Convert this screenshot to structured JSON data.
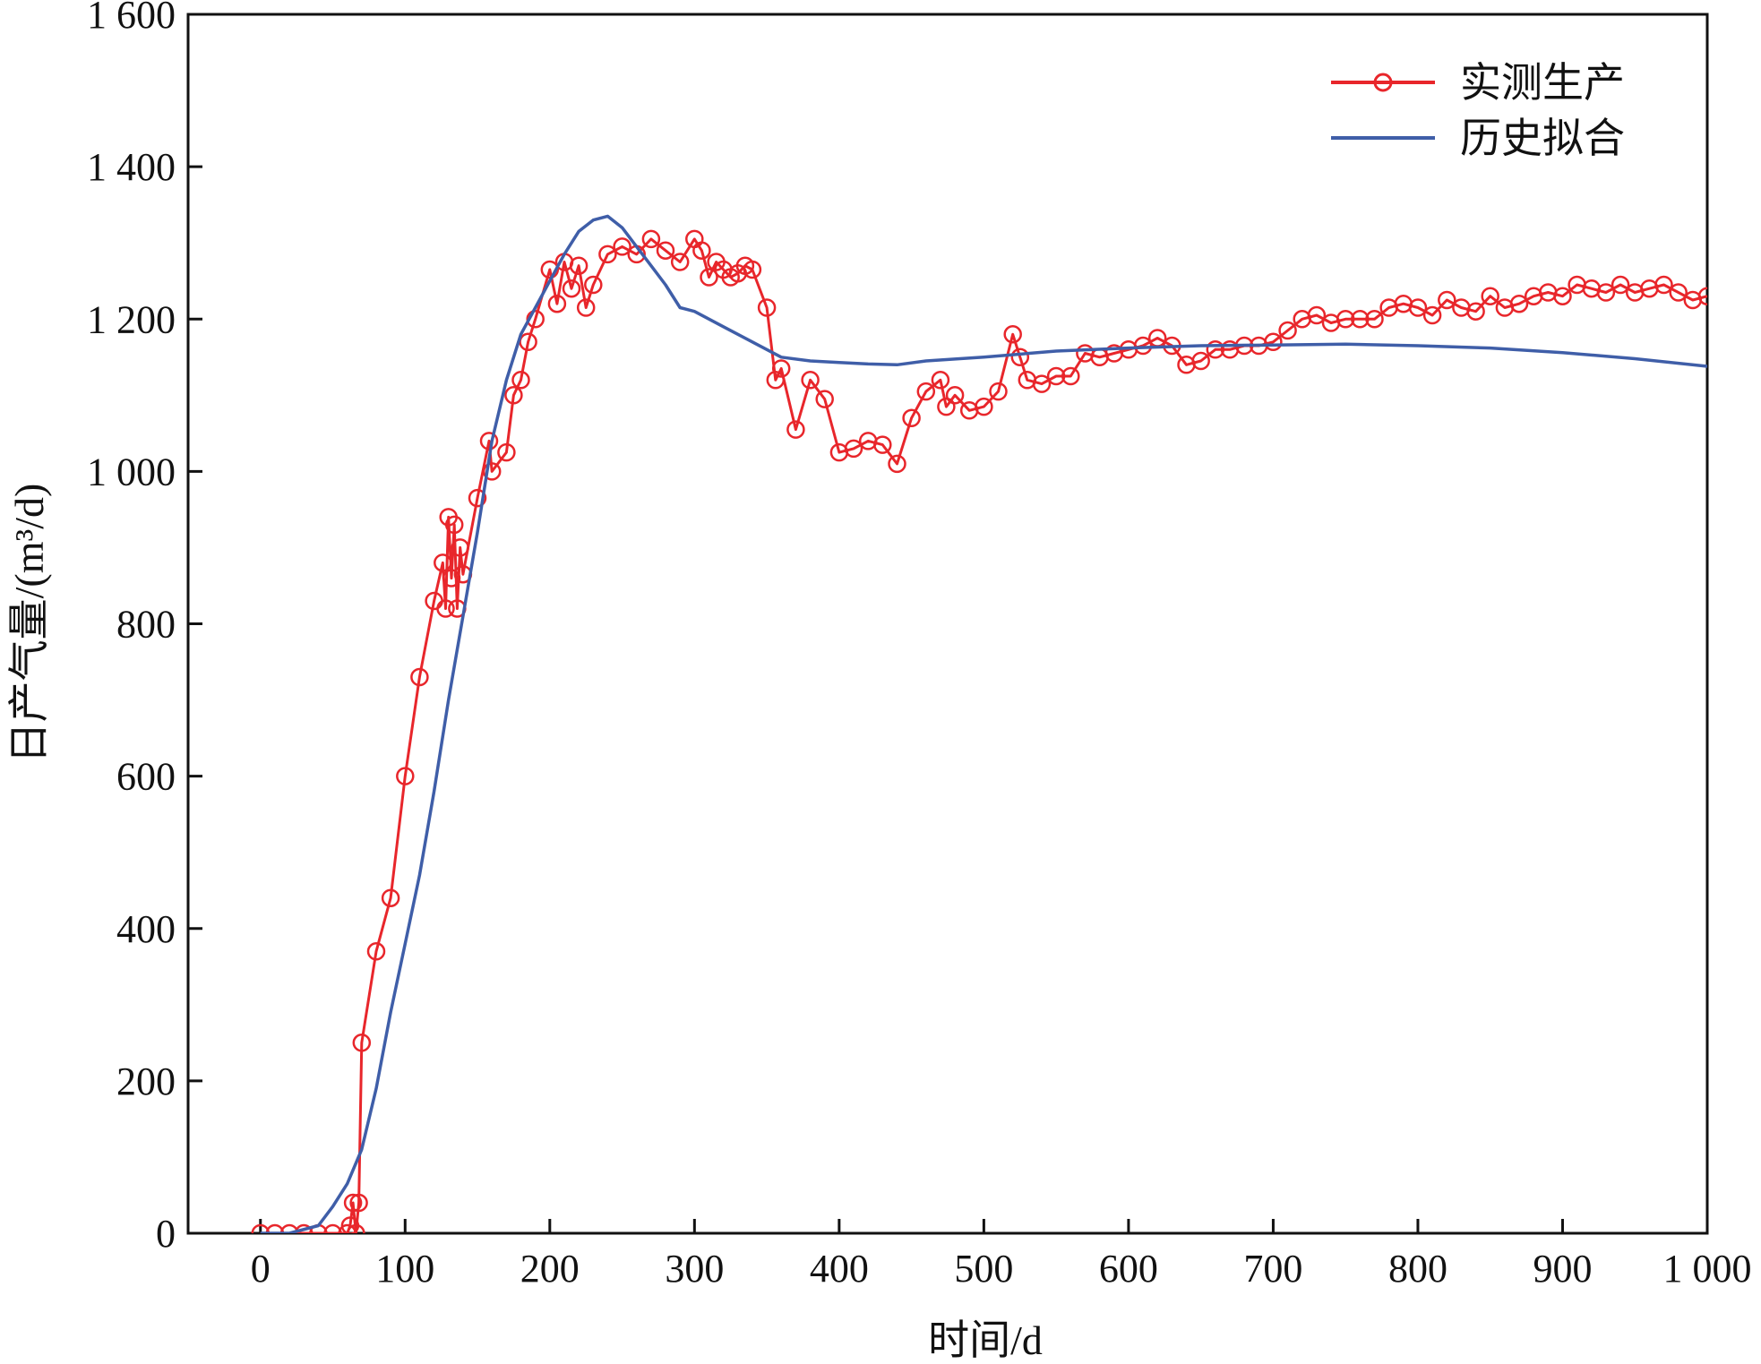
{
  "chart_data": {
    "type": "line",
    "xlabel": "时间/d",
    "ylabel": "日产气量/(m³/d)",
    "xlim": [
      -50,
      1000
    ],
    "ylim": [
      0,
      1600
    ],
    "xticks": [
      0,
      100,
      200,
      300,
      400,
      500,
      600,
      700,
      800,
      900,
      1000
    ],
    "yticks": [
      0,
      200,
      400,
      600,
      800,
      1000,
      1200,
      1400,
      1600
    ],
    "xtick_labels": [
      "0",
      "100",
      "200",
      "300",
      "400",
      "500",
      "600",
      "700",
      "800",
      "900",
      "1 000"
    ],
    "ytick_labels": [
      "0",
      "200",
      "400",
      "600",
      "800",
      "1 000",
      "1 200",
      "1 400",
      "1 600"
    ],
    "legend_position": "top-right",
    "series": [
      {
        "name": "实测生产",
        "color": "#e8262b",
        "marker": "open-circle",
        "x": [
          0,
          10,
          20,
          30,
          40,
          50,
          60,
          62,
          64,
          66,
          68,
          70,
          80,
          90,
          100,
          110,
          120,
          126,
          128,
          130,
          132,
          134,
          136,
          138,
          140,
          150,
          158,
          160,
          170,
          175,
          180,
          185,
          190,
          200,
          205,
          210,
          215,
          220,
          225,
          230,
          240,
          250,
          260,
          270,
          280,
          290,
          300,
          305,
          310,
          315,
          320,
          325,
          330,
          335,
          340,
          350,
          356,
          360,
          370,
          380,
          390,
          400,
          410,
          420,
          430,
          440,
          450,
          460,
          470,
          474,
          480,
          490,
          500,
          510,
          520,
          525,
          530,
          540,
          550,
          560,
          570,
          580,
          590,
          600,
          610,
          620,
          630,
          640,
          650,
          660,
          670,
          680,
          690,
          700,
          710,
          720,
          730,
          740,
          750,
          760,
          770,
          780,
          790,
          800,
          810,
          820,
          830,
          840,
          850,
          860,
          870,
          880,
          890,
          900,
          910,
          920,
          930,
          940,
          950,
          960,
          970,
          980,
          990,
          1000
        ],
        "y": [
          0,
          0,
          0,
          0,
          0,
          0,
          0,
          10,
          40,
          0,
          40,
          250,
          370,
          440,
          600,
          730,
          830,
          880,
          820,
          940,
          860,
          930,
          820,
          900,
          865,
          965,
          1040,
          1000,
          1025,
          1100,
          1120,
          1170,
          1200,
          1265,
          1220,
          1275,
          1240,
          1270,
          1215,
          1245,
          1285,
          1295,
          1285,
          1305,
          1290,
          1275,
          1305,
          1290,
          1255,
          1275,
          1265,
          1255,
          1260,
          1270,
          1265,
          1215,
          1120,
          1135,
          1055,
          1120,
          1095,
          1025,
          1030,
          1040,
          1035,
          1010,
          1070,
          1105,
          1120,
          1085,
          1100,
          1080,
          1085,
          1105,
          1180,
          1150,
          1120,
          1115,
          1125,
          1125,
          1155,
          1150,
          1155,
          1160,
          1165,
          1175,
          1165,
          1140,
          1145,
          1160,
          1160,
          1165,
          1165,
          1170,
          1185,
          1200,
          1205,
          1195,
          1200,
          1200,
          1200,
          1215,
          1220,
          1215,
          1205,
          1225,
          1215,
          1210,
          1230,
          1215,
          1220,
          1230,
          1235,
          1230,
          1245,
          1240,
          1235,
          1245,
          1235,
          1240,
          1245,
          1235,
          1225,
          1230
        ]
      },
      {
        "name": "历史拟合",
        "color": "#3f5ea8",
        "marker": "none",
        "x": [
          0,
          20,
          40,
          50,
          60,
          70,
          80,
          90,
          100,
          110,
          120,
          130,
          140,
          150,
          160,
          170,
          180,
          190,
          200,
          210,
          220,
          230,
          240,
          250,
          260,
          270,
          280,
          290,
          300,
          320,
          340,
          360,
          380,
          400,
          420,
          440,
          460,
          500,
          550,
          600,
          650,
          700,
          750,
          800,
          850,
          900,
          950,
          1000
        ],
        "y": [
          0,
          0,
          10,
          35,
          65,
          110,
          190,
          290,
          380,
          470,
          580,
          700,
          810,
          920,
          1040,
          1120,
          1180,
          1215,
          1250,
          1285,
          1315,
          1330,
          1335,
          1320,
          1295,
          1270,
          1245,
          1215,
          1210,
          1190,
          1170,
          1150,
          1145,
          1143,
          1141,
          1140,
          1145,
          1150,
          1158,
          1162,
          1165,
          1166,
          1167,
          1165,
          1162,
          1156,
          1148,
          1138
        ]
      }
    ]
  }
}
